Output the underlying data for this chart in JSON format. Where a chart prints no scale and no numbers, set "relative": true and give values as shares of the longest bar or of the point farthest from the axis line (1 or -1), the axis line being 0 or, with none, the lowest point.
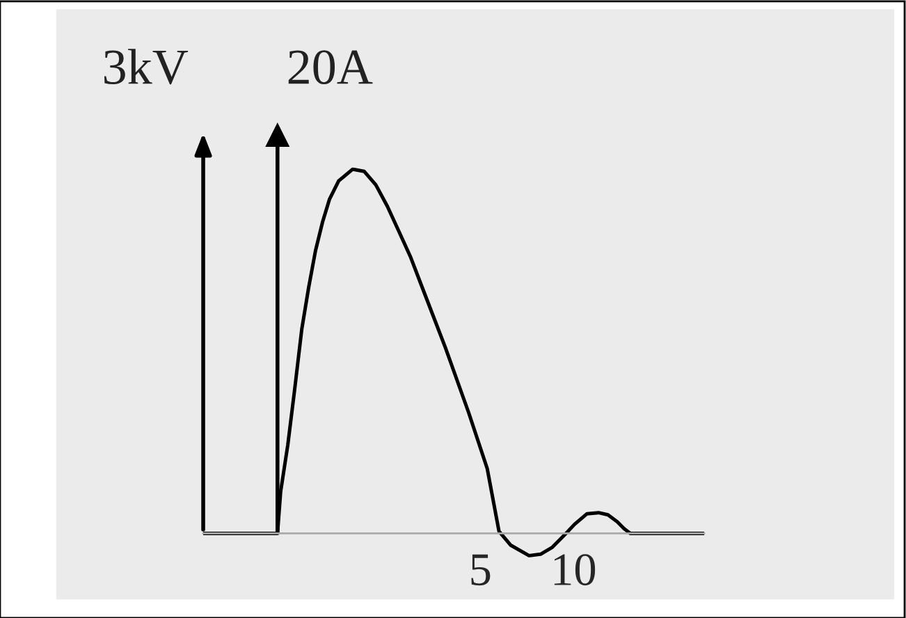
{
  "chart_data": {
    "type": "line",
    "relative": true,
    "ylabel": "3kV",
    "x": [
      -9.85,
      -5.87,
      -5.7,
      -5.32,
      -4.95,
      -4.57,
      -4.2,
      -3.83,
      -3.46,
      -3.08,
      -2.59,
      -1.84,
      -1.22,
      -0.6,
      0.02,
      0.65,
      1.27,
      1.89,
      3.13,
      4.38,
      5.37,
      6.0,
      6.62,
      7.61,
      8.23,
      8.86,
      9.48,
      10.05,
      10.72,
      11.34,
      11.84,
      12.34,
      12.71,
      13.04,
      17.0
    ],
    "series": [
      {
        "color": "#000000",
        "values": [
          0,
          0,
          0.115,
          0.242,
          0.395,
          0.56,
          0.675,
          0.777,
          0.854,
          0.918,
          0.968,
          1,
          0.994,
          0.957,
          0.898,
          0.828,
          0.758,
          0.675,
          0.51,
          0.331,
          0.178,
          0.006,
          -0.032,
          -0.061,
          -0.057,
          -0.038,
          -0.006,
          0.025,
          0.054,
          0.057,
          0.051,
          0.032,
          0.013,
          0,
          0
        ]
      }
    ],
    "xlim": [
      -9.85,
      17.0
    ],
    "xticks": [
      5,
      10
    ],
    "ref_lines": [
      {
        "axis": "x",
        "value": -5.87,
        "label": "20A",
        "color": "#000000"
      }
    ],
    "grid": false,
    "legend": false,
    "marker": "none",
    "line_style": "solid"
  }
}
